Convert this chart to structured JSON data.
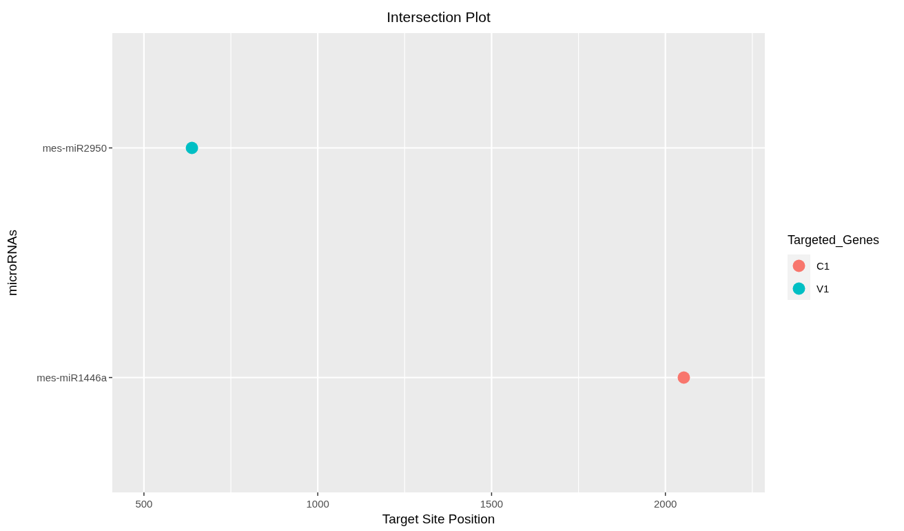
{
  "chart_data": {
    "type": "scatter",
    "title": "Intersection Plot",
    "xlabel": "Target Site Position",
    "ylabel": "microRNAs",
    "legend_title": "Targeted_Genes",
    "orientation": "horizontal",
    "categories": [
      "mes-miR2950",
      "mes-miR1446a"
    ],
    "series": [
      {
        "name": "C1",
        "color": "#f8766d",
        "values": [
          null,
          2053
        ]
      },
      {
        "name": "V1",
        "color": "#00bfc4",
        "values": [
          638,
          null
        ]
      }
    ],
    "xlim": [
      409,
      2286
    ],
    "xticks": [
      500,
      {
        "value": 750,
        "label": null
      },
      1000,
      {
        "value": 1250,
        "label": null
      },
      1500,
      {
        "value": 1750,
        "label": null
      },
      2000,
      {
        "value": 2250,
        "label": null
      }
    ],
    "grid": true,
    "legend": "right",
    "marker": "circle"
  }
}
